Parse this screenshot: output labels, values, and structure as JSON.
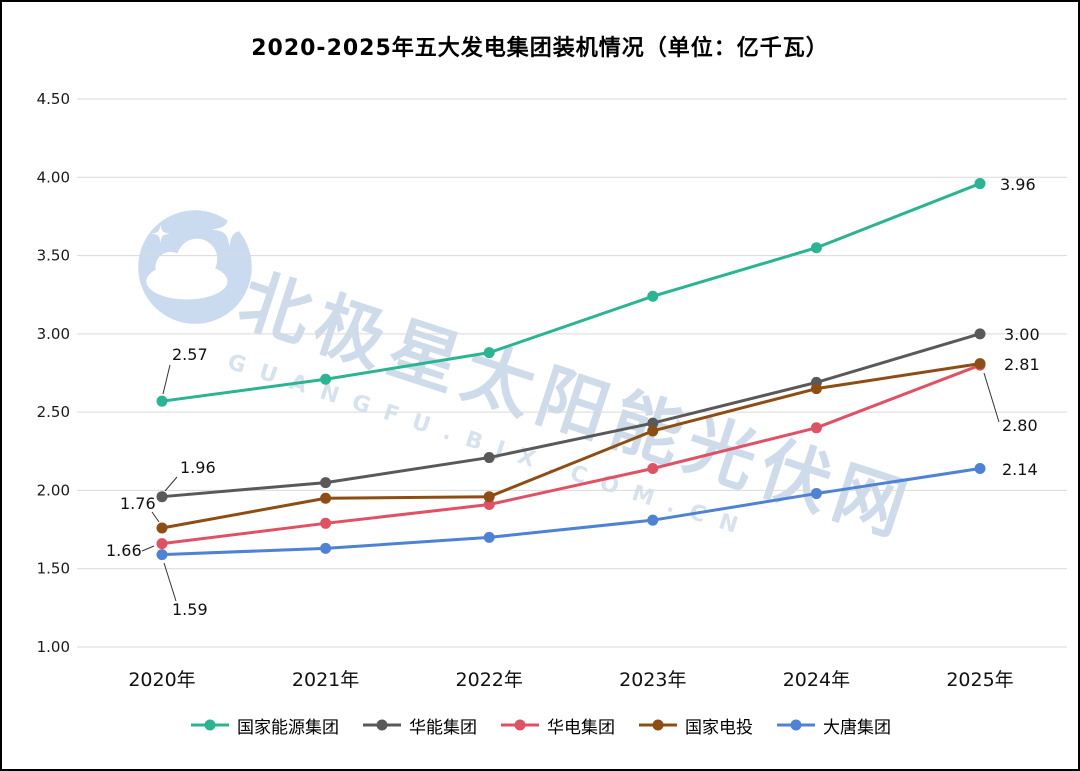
{
  "title": "2020-2025年五大发电集团装机情况（单位：亿千瓦）",
  "watermark": {
    "line1": "北极星太阳能光伏网",
    "line2": "GUANGFU.BJX.COM.CN"
  },
  "chart_data": {
    "type": "line",
    "title": "2020-2025年五大发电集团装机情况（单位：亿千瓦）",
    "categories": [
      "2020年",
      "2021年",
      "2022年",
      "2023年",
      "2024年",
      "2025年"
    ],
    "series": [
      {
        "name": "国家能源集团",
        "color": "#29b492",
        "values": [
          2.57,
          2.71,
          2.88,
          3.24,
          3.55,
          3.96
        ]
      },
      {
        "name": "华能集团",
        "color": "#595959",
        "values": [
          1.96,
          2.05,
          2.21,
          2.43,
          2.69,
          3.0
        ]
      },
      {
        "name": "华电集团",
        "color": "#e05263",
        "values": [
          1.66,
          1.79,
          1.91,
          2.14,
          2.4,
          2.8
        ]
      },
      {
        "name": "国家电投",
        "color": "#8e4d13",
        "values": [
          1.76,
          1.95,
          1.96,
          2.38,
          2.65,
          2.81
        ]
      },
      {
        "name": "大唐集团",
        "color": "#4d82d4",
        "values": [
          1.59,
          1.63,
          1.7,
          1.81,
          1.98,
          2.14
        ]
      }
    ],
    "ylim": [
      1.0,
      4.5
    ],
    "ytick_step": 0.5,
    "yticks": [
      "4.50",
      "4.00",
      "3.50",
      "3.00",
      "2.50",
      "2.00",
      "1.50",
      "1.00"
    ],
    "grid": true,
    "legend_position": "bottom",
    "labeled_points": {
      "start_labels": [
        "2.57",
        "1.96",
        "1.76",
        "1.66",
        "1.59"
      ],
      "end_labels": [
        "3.96",
        "3.00",
        "2.81",
        "2.80",
        "2.14"
      ]
    }
  }
}
